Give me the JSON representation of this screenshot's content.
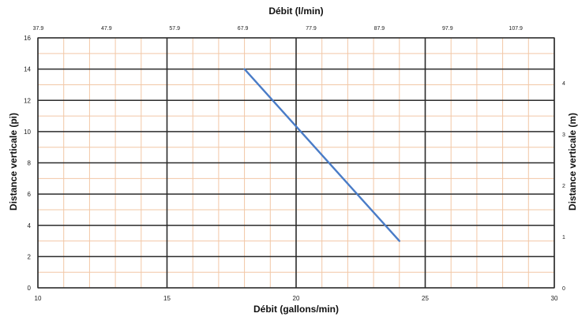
{
  "chart_data": {
    "type": "line",
    "xlabel": "Débit (gallons/min)",
    "ylabel": "Distance verticale (pi)",
    "x2label": "Débit (l/min)",
    "y2label": "Distance verticale (m)",
    "xlim": [
      10,
      30
    ],
    "ylim": [
      0,
      16
    ],
    "y2lim": [
      0,
      4.877
    ],
    "x_ticks": [
      10,
      15,
      20,
      25,
      30
    ],
    "y_ticks": [
      0,
      2,
      4,
      6,
      8,
      10,
      12,
      14,
      16
    ],
    "x2_ticks": [
      "37.9",
      "47.9",
      "57.9",
      "67.9",
      "77.9",
      "87.9",
      "97.9",
      "107.9"
    ],
    "x2_tick_values": [
      37.9,
      47.9,
      57.9,
      67.9,
      77.9,
      87.9,
      97.9,
      107.9
    ],
    "x2_per_x": 3.785,
    "y2_ticks": [
      0,
      1,
      2,
      3,
      4
    ],
    "grid": true,
    "grid_colors": {
      "major": "#2b2b2b",
      "minor": "#f2c7a6",
      "line": "#4a7cc7"
    },
    "series": [
      {
        "x": [
          18,
          24
        ],
        "y": [
          14,
          3
        ]
      }
    ]
  }
}
